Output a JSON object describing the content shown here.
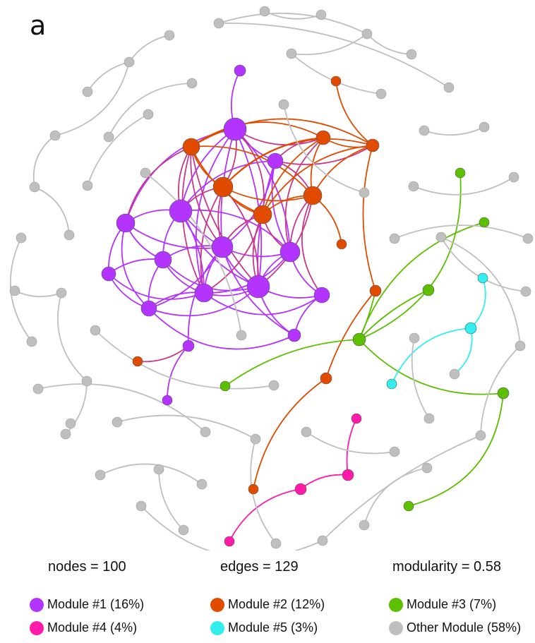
{
  "panel_label": "a",
  "stats": {
    "nodes": "nodes = 100",
    "edges": "edges = 129",
    "modularity": "modularity = 0.58"
  },
  "colors": {
    "m1": "#b333ff",
    "m2": "#e04b00",
    "m3": "#5cbf00",
    "m4": "#ff1aaa",
    "m5": "#33eeee",
    "other": "#bfbfbf"
  },
  "legend": [
    {
      "label": "Module #1 (16%)",
      "color": "#b333ff"
    },
    {
      "label": "Module #2 (12%)",
      "color": "#e04b00"
    },
    {
      "label": "Module #3 (7%)",
      "color": "#5cbf00"
    },
    {
      "label": "Module #4 (4%)",
      "color": "#ff1aaa"
    },
    {
      "label": "Module #5 (3%)",
      "color": "#33eeee"
    },
    {
      "label": "Other Module (58%)",
      "color": "#bfbfbf"
    }
  ]
}
